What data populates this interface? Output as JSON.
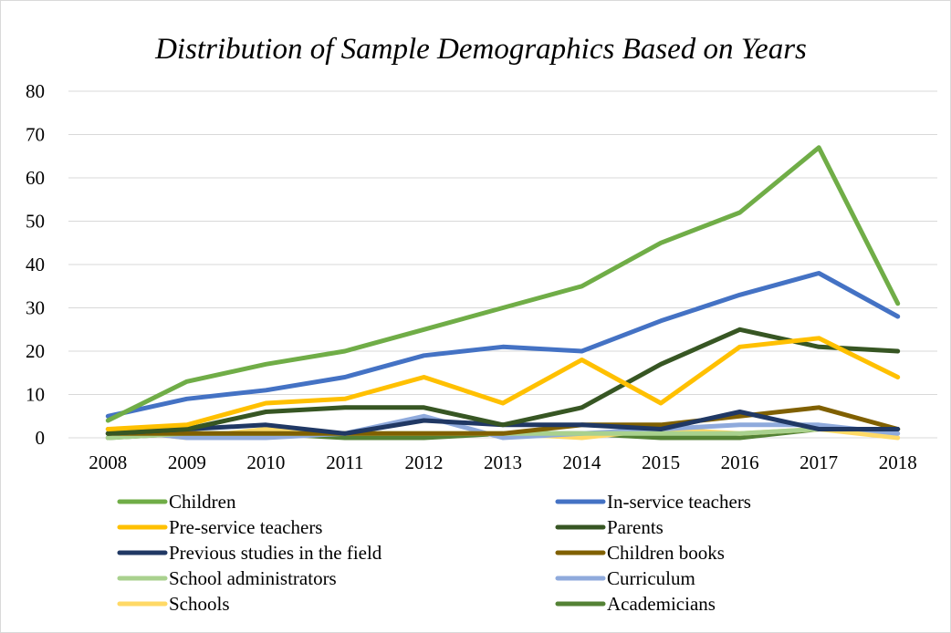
{
  "chart_data": {
    "type": "line",
    "title": "Distribution of Sample Demographics Based on Years",
    "xlabel": "",
    "ylabel": "",
    "ylim": [
      0,
      80
    ],
    "yticks": [
      0,
      10,
      20,
      30,
      40,
      50,
      60,
      70,
      80
    ],
    "grid": true,
    "legend_position": "bottom",
    "categories": [
      "2008",
      "2009",
      "2010",
      "2011",
      "2012",
      "2013",
      "2014",
      "2015",
      "2016",
      "2017",
      "2018"
    ],
    "series": [
      {
        "name": "Children",
        "color": "#70ad47",
        "values": [
          4,
          13,
          17,
          20,
          25,
          30,
          35,
          45,
          52,
          67,
          31
        ]
      },
      {
        "name": "In-service teachers",
        "color": "#4472c4",
        "values": [
          5,
          9,
          11,
          14,
          19,
          21,
          20,
          27,
          33,
          38,
          28
        ]
      },
      {
        "name": "Pre-service teachers",
        "color": "#ffc000",
        "values": [
          2,
          3,
          8,
          9,
          14,
          8,
          18,
          8,
          21,
          23,
          14
        ]
      },
      {
        "name": "Parents",
        "color": "#375623",
        "values": [
          1,
          2,
          6,
          7,
          7,
          3,
          7,
          17,
          25,
          21,
          20
        ]
      },
      {
        "name": "Previous studies in the field",
        "color": "#203864",
        "values": [
          1,
          2,
          3,
          1,
          4,
          3,
          3,
          2,
          6,
          2,
          2
        ]
      },
      {
        "name": "Children books",
        "color": "#806000",
        "values": [
          1,
          1,
          1,
          1,
          1,
          1,
          3,
          3,
          5,
          7,
          2
        ]
      },
      {
        "name": "School administrators",
        "color": "#a9d18e",
        "values": [
          0,
          1,
          1,
          1,
          1,
          1,
          1,
          1,
          1,
          2,
          2
        ]
      },
      {
        "name": "Curriculum",
        "color": "#8faadc",
        "values": [
          2,
          0,
          0,
          1,
          5,
          0,
          1,
          2,
          3,
          3,
          1
        ]
      },
      {
        "name": "Schools",
        "color": "#ffd966",
        "values": [
          2,
          0,
          2,
          1,
          1,
          1,
          0,
          2,
          1,
          2,
          0
        ]
      },
      {
        "name": "Academicians",
        "color": "#548235",
        "values": [
          0,
          1,
          1,
          0,
          0,
          1,
          1,
          0,
          0,
          2,
          2
        ]
      }
    ]
  }
}
